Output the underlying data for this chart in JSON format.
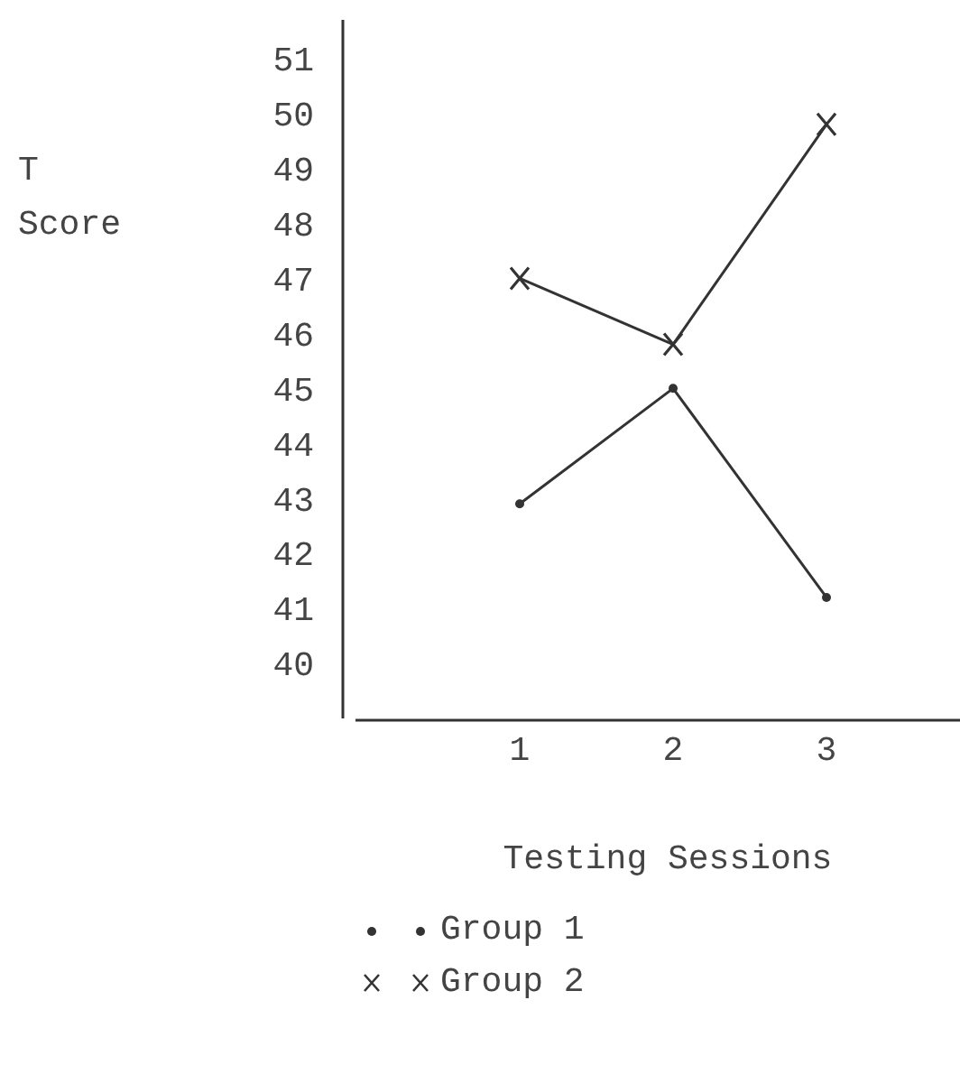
{
  "chart_data": {
    "type": "line",
    "xlabel": "Testing Sessions",
    "ylabel": "T Score",
    "categories": [
      "1",
      "2",
      "3"
    ],
    "series": [
      {
        "name": "Group 1",
        "color": "#333333",
        "marker": "circle",
        "values": [
          42.9,
          45.0,
          41.2
        ]
      },
      {
        "name": "Group 2",
        "color": "#333333",
        "marker": "cross",
        "values": [
          47.0,
          45.8,
          49.8
        ]
      }
    ],
    "ylim": [
      39,
      51.7
    ],
    "yticks": [
      40,
      41,
      42,
      43,
      44,
      45,
      46,
      47,
      48,
      49,
      50,
      51
    ],
    "grid": false,
    "legend": "bottom",
    "line_style": "solid"
  }
}
